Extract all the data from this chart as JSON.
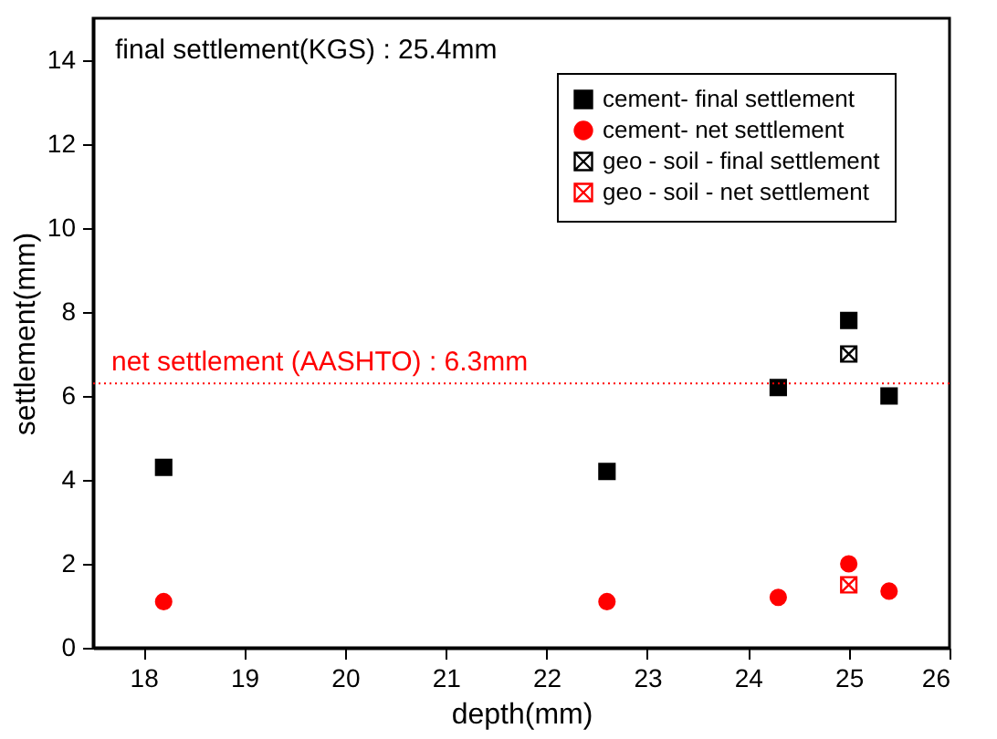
{
  "chart_data": {
    "type": "scatter",
    "xlabel": "depth(mm)",
    "ylabel": "settlement(mm)",
    "xlim": [
      17.5,
      26
    ],
    "xticks": [
      18,
      19,
      20,
      21,
      22,
      23,
      24,
      25,
      26
    ],
    "ylim": [
      0,
      15
    ],
    "yticks": [
      0,
      2,
      4,
      6,
      8,
      10,
      12,
      14
    ],
    "grid": false,
    "legend": "top right",
    "series": [
      {
        "name": "cement- final settlement",
        "color": "#000000",
        "marker": "square",
        "x": [
          18.2,
          22.6,
          24.3,
          25.0,
          25.4
        ],
        "values": [
          4.3,
          4.2,
          6.2,
          7.8,
          6.0
        ]
      },
      {
        "name": "cement- net settlement",
        "color": "#ff0000",
        "marker": "circle",
        "x": [
          18.2,
          22.6,
          24.3,
          25.0,
          25.4
        ],
        "values": [
          1.1,
          1.1,
          1.2,
          2.0,
          1.35
        ]
      },
      {
        "name": "geo - soil - final settlement",
        "color": "#000000",
        "marker": "cross",
        "x": [
          25.0
        ],
        "values": [
          7.0
        ]
      },
      {
        "name": "geo - soil - net settlement",
        "color": "#ff0000",
        "marker": "cross",
        "x": [
          25.0
        ],
        "values": [
          1.5
        ]
      }
    ],
    "ref_lines": [
      {
        "axis": "y",
        "value": 6.3,
        "label": "net settlement (AASHTO) : 6.3mm",
        "color": "#ff0000",
        "line_style": "dotted"
      }
    ],
    "annotations": [
      "final settlement(KGS) : 25.4mm"
    ]
  }
}
